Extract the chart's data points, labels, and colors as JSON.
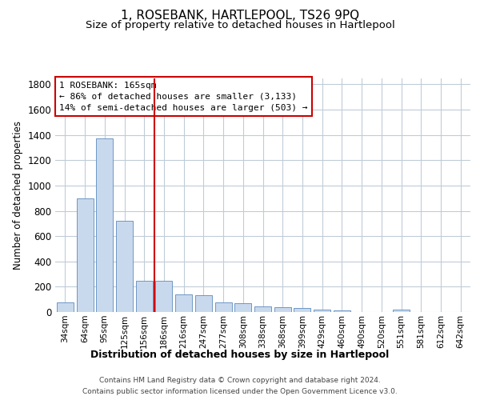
{
  "title": "1, ROSEBANK, HARTLEPOOL, TS26 9PQ",
  "subtitle": "Size of property relative to detached houses in Hartlepool",
  "xlabel": "Distribution of detached houses by size in Hartlepool",
  "ylabel": "Number of detached properties",
  "bar_labels": [
    "34sqm",
    "64sqm",
    "95sqm",
    "125sqm",
    "156sqm",
    "186sqm",
    "216sqm",
    "247sqm",
    "277sqm",
    "308sqm",
    "338sqm",
    "368sqm",
    "399sqm",
    "429sqm",
    "460sqm",
    "490sqm",
    "520sqm",
    "551sqm",
    "581sqm",
    "612sqm",
    "642sqm"
  ],
  "bar_values": [
    75,
    900,
    1370,
    720,
    245,
    245,
    140,
    130,
    75,
    70,
    45,
    40,
    30,
    20,
    10,
    0,
    0,
    20,
    0,
    0,
    0
  ],
  "bar_color": "#c9d9ed",
  "bar_edge_color": "#5b8abf",
  "vline_x_index": 4.5,
  "vline_color": "#cc0000",
  "ylim": [
    0,
    1850
  ],
  "yticks": [
    0,
    200,
    400,
    600,
    800,
    1000,
    1200,
    1400,
    1600,
    1800
  ],
  "annotation_text": "1 ROSEBANK: 165sqm\n← 86% of detached houses are smaller (3,133)\n14% of semi-detached houses are larger (503) →",
  "annotation_box_color": "#ffffff",
  "annotation_box_edge": "#cc0000",
  "footer_line1": "Contains HM Land Registry data © Crown copyright and database right 2024.",
  "footer_line2": "Contains public sector information licensed under the Open Government Licence v3.0.",
  "background_color": "#ffffff",
  "grid_color": "#c0ccd8",
  "title_fontsize": 11,
  "subtitle_fontsize": 9.5,
  "tick_label_fontsize": 7.5,
  "ylabel_fontsize": 8.5,
  "xlabel_fontsize": 9,
  "footer_fontsize": 6.5
}
